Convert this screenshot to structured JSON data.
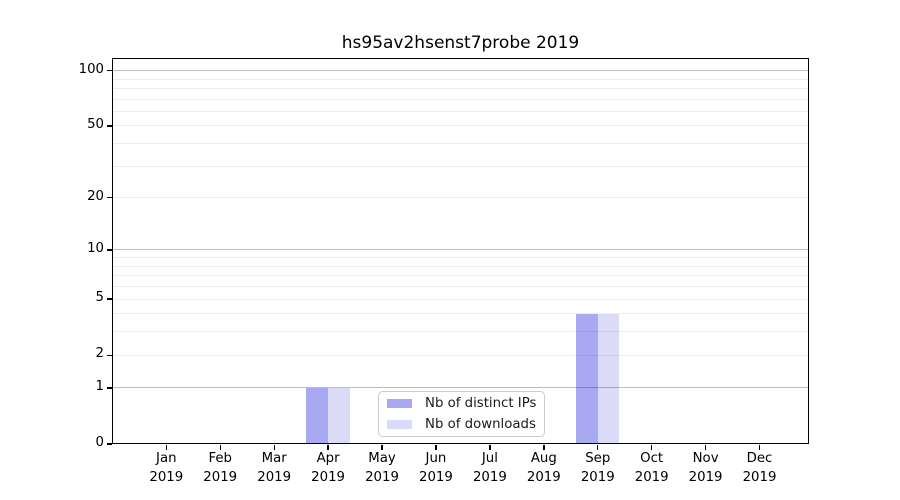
{
  "chart_data": {
    "type": "bar",
    "title": "hs95av2hsenst7probe 2019",
    "x_categories": [
      "Jan 2019",
      "Feb 2019",
      "Mar 2019",
      "Apr 2019",
      "May 2019",
      "Jun 2019",
      "Jul 2019",
      "Aug 2019",
      "Sep 2019",
      "Oct 2019",
      "Nov 2019",
      "Dec 2019"
    ],
    "series": [
      {
        "name": "Nb of distinct IPs",
        "color": "#a9a9f2",
        "values": [
          0,
          0,
          0,
          1,
          0,
          0,
          0,
          0,
          4,
          0,
          0,
          0
        ]
      },
      {
        "name": "Nb of downloads",
        "color": "#dbdbf8",
        "values": [
          0,
          0,
          0,
          1,
          0,
          0,
          0,
          0,
          4,
          0,
          0,
          0
        ]
      }
    ],
    "y_axis": {
      "scale": "log1p",
      "tick_values": [
        0,
        1,
        2,
        5,
        10,
        20,
        50,
        100
      ],
      "tick_labels": [
        "0",
        "1",
        "2",
        "5",
        "10",
        "20",
        "50",
        "100"
      ],
      "major_gridlines": [
        1,
        10,
        100
      ],
      "minor_gridlines": [
        2,
        3,
        4,
        5,
        6,
        7,
        8,
        9,
        20,
        30,
        40,
        50,
        60,
        70,
        80,
        90
      ],
      "ylim": [
        0,
        117
      ]
    },
    "xlabel": "",
    "ylabel": "",
    "grid": true,
    "legend": {
      "location": "lower center",
      "entries": [
        "Nb of distinct IPs",
        "Nb of downloads"
      ]
    },
    "colors": {
      "major_grid": "rgba(0,0,0,0.25)",
      "minor_grid": "rgba(0,0,0,0.07)",
      "axis": "#000000",
      "text": "#000000"
    }
  }
}
